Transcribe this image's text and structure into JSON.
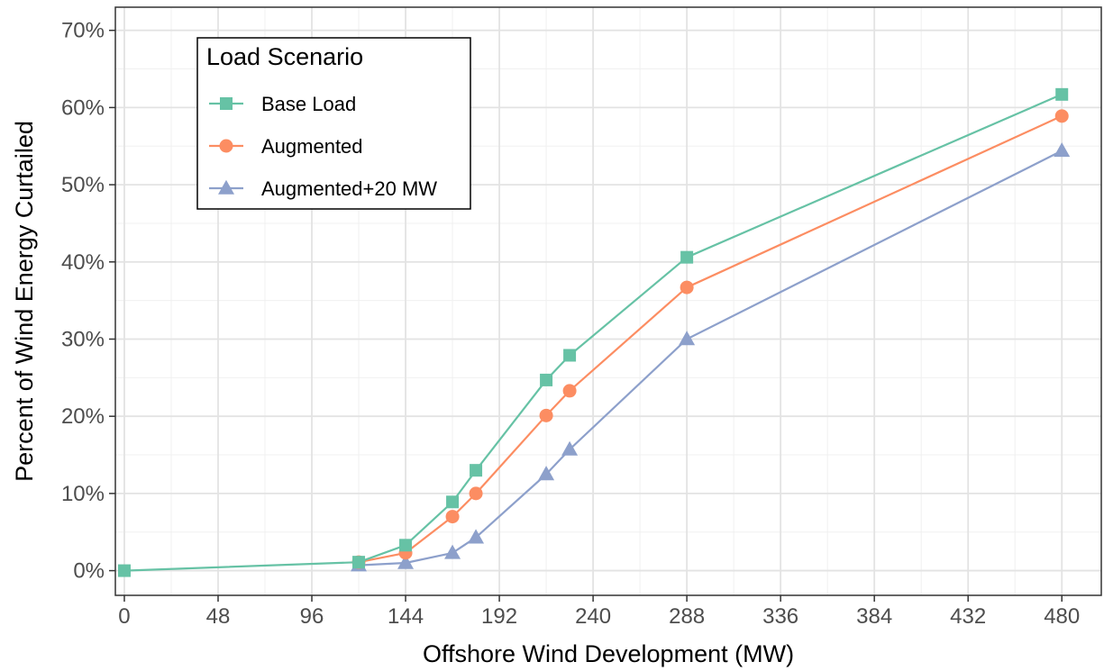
{
  "chart_data": {
    "type": "line",
    "xlabel": "Offshore Wind Development (MW)",
    "ylabel": "Percent of Wind Energy Curtailed",
    "xlim": [
      -4.6,
      500.2
    ],
    "ylim": [
      -3.2,
      73.0
    ],
    "x_ticks": [
      0,
      48,
      96,
      144,
      192,
      240,
      288,
      336,
      384,
      432,
      480
    ],
    "x_tick_labels": [
      "0",
      "48",
      "96",
      "144",
      "192",
      "240",
      "288",
      "336",
      "384",
      "432",
      "480"
    ],
    "y_ticks": [
      0,
      10,
      20,
      30,
      40,
      50,
      60,
      70
    ],
    "y_tick_labels": [
      "0%",
      "10%",
      "20%",
      "30%",
      "40%",
      "50%",
      "60%",
      "70%"
    ],
    "grid": true,
    "legend": {
      "title": "Load Scenario",
      "placement": "top-left"
    },
    "series": [
      {
        "name": "Base Load",
        "color": "#66c2a5",
        "marker": "square",
        "x": [
          0,
          120,
          144,
          168,
          180,
          216,
          228,
          288,
          480
        ],
        "y": [
          0.0,
          1.1,
          3.3,
          8.9,
          13.0,
          24.7,
          27.9,
          40.6,
          61.7
        ]
      },
      {
        "name": "Augmented",
        "color": "#fc8d62",
        "marker": "circle",
        "x": [
          120,
          144,
          168,
          180,
          216,
          228,
          288,
          480
        ],
        "y": [
          1.1,
          2.3,
          7.0,
          10.0,
          20.1,
          23.3,
          36.7,
          58.9
        ]
      },
      {
        "name": "Augmented+20 MW",
        "color": "#8da0cb",
        "marker": "triangle",
        "x": [
          120,
          144,
          168,
          180,
          216,
          228,
          288,
          480
        ],
        "y": [
          0.7,
          1.0,
          2.3,
          4.3,
          12.5,
          15.7,
          30.0,
          54.4
        ]
      }
    ]
  }
}
